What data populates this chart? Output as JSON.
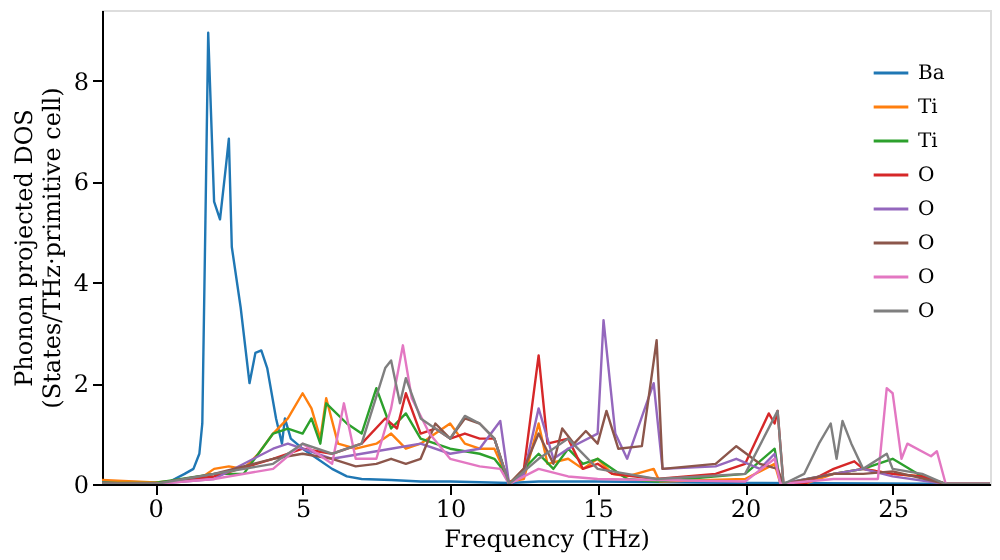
{
  "chart_data": {
    "type": "line",
    "xlabel": "Frequency (THz)",
    "ylabel": "Phonon projected DOS\n(States/THz·primitive cell)",
    "xlim": [
      -1.8,
      28.3
    ],
    "ylim": [
      0,
      9.4
    ],
    "xticks": [
      0,
      5,
      10,
      15,
      20,
      25
    ],
    "yticks": [
      0,
      2,
      4,
      6,
      8
    ],
    "grid": false,
    "legend": "top right",
    "line_style": "solid",
    "marker": "none",
    "series": [
      {
        "name": "Ba",
        "color": "#1f77b4",
        "x": [
          -1.8,
          0,
          0.5,
          1,
          1.3,
          1.5,
          1.6,
          1.7,
          1.8,
          2.0,
          2.2,
          2.4,
          2.5,
          2.6,
          2.9,
          3.2,
          3.4,
          3.6,
          3.8,
          4.1,
          4.3,
          4.4,
          4.6,
          5,
          5.5,
          6,
          6.5,
          7,
          8,
          9,
          10,
          12,
          13,
          15,
          20,
          28.3
        ],
        "values": [
          0.05,
          0.03,
          0.05,
          0.2,
          0.3,
          0.6,
          1.2,
          5,
          8.95,
          5.6,
          5.25,
          6.3,
          6.85,
          4.7,
          3.5,
          2.0,
          2.6,
          2.65,
          2.3,
          1.3,
          0.8,
          1.3,
          0.9,
          0.7,
          0.5,
          0.3,
          0.15,
          0.1,
          0.08,
          0.05,
          0.05,
          0.02,
          0.05,
          0.05,
          0.02,
          0
        ]
      },
      {
        "name": "Ti",
        "color": "#ff7f0e",
        "x": [
          -1.8,
          0,
          1.5,
          2,
          2.5,
          3,
          3.5,
          4,
          4.5,
          5,
          5.3,
          5.6,
          5.8,
          6.2,
          6.8,
          7.5,
          8,
          8.5,
          9,
          9.5,
          10,
          10.5,
          11,
          11.5,
          12,
          12.5,
          13,
          13.3,
          14,
          14.5,
          15,
          15.5,
          16,
          16.9,
          17.1,
          20,
          21,
          21.2,
          22,
          23,
          24,
          25,
          26,
          26.8,
          28.3
        ],
        "values": [
          0.08,
          0.03,
          0.1,
          0.3,
          0.35,
          0.3,
          0.6,
          1.0,
          1.3,
          1.8,
          1.5,
          0.9,
          1.7,
          0.8,
          0.7,
          0.8,
          1.0,
          0.7,
          0.8,
          1.0,
          1.2,
          0.8,
          0.7,
          0.7,
          0.05,
          0.1,
          1.2,
          0.4,
          0.5,
          0.3,
          0.5,
          0.2,
          0.15,
          0.3,
          0.05,
          0.1,
          0.4,
          0,
          0,
          0.2,
          0.3,
          0.2,
          0.15,
          0,
          0
        ]
      },
      {
        "name": "Ti",
        "color": "#2ca02c",
        "x": [
          -1.8,
          0,
          2,
          3,
          4,
          4.5,
          5,
          5.3,
          5.6,
          5.8,
          6.5,
          7,
          7.5,
          8,
          8.5,
          9,
          10,
          11,
          11.5,
          11.7,
          12,
          13,
          13.5,
          14,
          14.5,
          15,
          16,
          17,
          20,
          21,
          21.2,
          23,
          24,
          25,
          26,
          26.8,
          28.3
        ],
        "values": [
          0.02,
          0.02,
          0.2,
          0.2,
          1.0,
          1.1,
          1.0,
          1.3,
          0.8,
          1.6,
          1.2,
          1.0,
          1.9,
          1.1,
          1.4,
          0.9,
          0.7,
          0.6,
          0.5,
          0.35,
          0,
          0.6,
          0.3,
          0.7,
          0.4,
          0.5,
          0.1,
          0.05,
          0.2,
          0.7,
          0,
          0.2,
          0.3,
          0.5,
          0.15,
          0,
          0
        ]
      },
      {
        "name": "O",
        "color": "#d62728",
        "x": [
          -1.8,
          0,
          2,
          4,
          5,
          6,
          7,
          7.8,
          8.2,
          8.5,
          9,
          9.5,
          10,
          10.5,
          11,
          11.5,
          12,
          12.5,
          13,
          13.3,
          14,
          14.5,
          15,
          15.5,
          17,
          19,
          20,
          20.8,
          21,
          21.1,
          21.3,
          22,
          23,
          23.7,
          24,
          25,
          26,
          26.8,
          28.3
        ],
        "values": [
          0,
          0,
          0.15,
          0.5,
          0.7,
          0.6,
          0.8,
          1.3,
          1.1,
          1.8,
          1.0,
          1.1,
          0.9,
          1.0,
          0.9,
          0.9,
          0,
          0.3,
          2.55,
          0.8,
          0.9,
          0.3,
          0.4,
          0.2,
          0.1,
          0.2,
          0.4,
          1.4,
          1.2,
          1.45,
          0,
          0,
          0.3,
          0.45,
          0.3,
          0.2,
          0.15,
          0,
          0
        ]
      },
      {
        "name": "O",
        "color": "#9467bd",
        "x": [
          -1.8,
          0,
          2,
          4,
          4.5,
          5,
          6,
          7,
          8,
          9,
          10,
          11,
          11.7,
          12,
          12.5,
          13,
          13.5,
          14,
          15,
          15.2,
          15.6,
          16,
          16.9,
          17.2,
          19,
          19.7,
          20.5,
          21,
          21.2,
          23,
          24,
          25,
          26.8,
          28.3
        ],
        "values": [
          0,
          0,
          0.1,
          0.7,
          0.8,
          0.7,
          0.5,
          0.6,
          0.7,
          0.8,
          0.6,
          0.7,
          1.25,
          0,
          0.2,
          1.5,
          0.5,
          0.7,
          1.0,
          3.25,
          1.0,
          0.5,
          2.0,
          0.3,
          0.35,
          0.5,
          0.3,
          0.6,
          0,
          0.2,
          0.3,
          0.15,
          0,
          0
        ]
      },
      {
        "name": "O",
        "color": "#8c564b",
        "x": [
          -1.8,
          0,
          2,
          4,
          5,
          6,
          6.8,
          7.5,
          8,
          8.5,
          9,
          9.5,
          10,
          10.5,
          11,
          11.5,
          12,
          12.5,
          13,
          13.5,
          13.8,
          14.2,
          14.6,
          15,
          15.3,
          15.7,
          16.5,
          17,
          17.2,
          19,
          19.7,
          20.5,
          21.1,
          21.3,
          23,
          24,
          25,
          26.8,
          28.3
        ],
        "values": [
          0,
          0,
          0.2,
          0.5,
          0.6,
          0.5,
          0.35,
          0.4,
          0.5,
          0.4,
          0.5,
          1.2,
          0.9,
          1.3,
          1.2,
          0.9,
          0,
          0.3,
          1.0,
          0.4,
          1.1,
          0.8,
          1.05,
          0.8,
          1.45,
          0.7,
          0.75,
          2.85,
          0.3,
          0.4,
          0.75,
          0.4,
          0.3,
          0,
          0.2,
          0.2,
          0.25,
          0,
          0
        ]
      },
      {
        "name": "O",
        "color": "#e377c2",
        "x": [
          -1.8,
          0,
          2,
          4,
          5,
          6,
          6.4,
          6.8,
          7.5,
          8,
          8.4,
          8.7,
          9.3,
          10,
          11,
          11.7,
          12,
          13,
          14,
          15,
          20,
          21,
          21.2,
          23,
          24.5,
          24.8,
          25,
          25.3,
          25.5,
          26.3,
          26.5,
          26.8,
          28.3
        ],
        "values": [
          0,
          0,
          0.1,
          0.3,
          0.8,
          0.4,
          1.6,
          0.5,
          0.5,
          1.5,
          2.75,
          1.7,
          1.0,
          0.5,
          0.35,
          0.3,
          0,
          0.3,
          0.15,
          0.1,
          0.05,
          0.5,
          0,
          0.1,
          0.1,
          1.9,
          1.8,
          0.5,
          0.8,
          0.55,
          0.65,
          0,
          0
        ]
      },
      {
        "name": "O",
        "color": "#7f7f7f",
        "x": [
          -1.8,
          0,
          2,
          4,
          5,
          6,
          7,
          7.8,
          8,
          8.3,
          8.5,
          9,
          10,
          10.5,
          11,
          11.5,
          12,
          13,
          14,
          15,
          16,
          17,
          20,
          21.1,
          21.3,
          22,
          22.5,
          22.9,
          23.1,
          23.3,
          23.6,
          24,
          24.8,
          25,
          26,
          26.8,
          28.3
        ],
        "values": [
          0,
          0,
          0.2,
          0.4,
          0.8,
          0.6,
          0.8,
          2.3,
          2.45,
          1.6,
          2.1,
          1.3,
          0.9,
          1.35,
          1.2,
          0.9,
          0,
          0.5,
          0.9,
          0.3,
          0.2,
          0.1,
          0.2,
          1.45,
          0,
          0.2,
          0.8,
          1.2,
          0.5,
          1.25,
          0.8,
          0.3,
          0.6,
          0.3,
          0.2,
          0,
          0
        ]
      }
    ]
  }
}
